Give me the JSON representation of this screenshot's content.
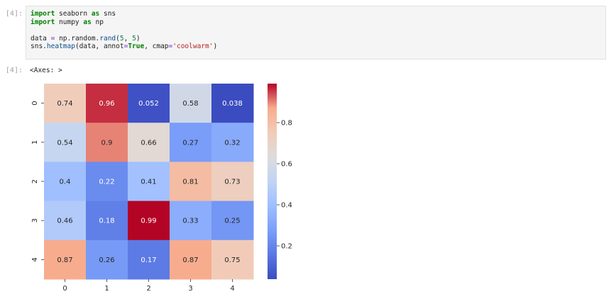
{
  "cell": {
    "in_prompt": "[4]:",
    "out_prompt": "[4]:",
    "output_text": "<Axes: >"
  },
  "code": {
    "line1": {
      "kw1": "import",
      "mod": " seaborn ",
      "kw2": "as",
      "alias": " sns"
    },
    "line2": {
      "kw1": "import",
      "mod": " numpy ",
      "kw2": "as",
      "alias": " np"
    },
    "line4": {
      "pre": "data ",
      "eq": "=",
      "mid": " np.random.",
      "fn": "rand",
      "open": "(",
      "n1": "5",
      "comma": ", ",
      "n2": "5",
      "close": ")"
    },
    "line5": {
      "pre": "sns.",
      "fn": "heatmap",
      "args1": "(data, annot",
      "eq1": "=",
      "kwval": "True",
      "args2": ", cmap",
      "eq2": "=",
      "str": "'coolwarm'",
      "close": ")"
    }
  },
  "chart_data": {
    "type": "heatmap",
    "x_labels": [
      "0",
      "1",
      "2",
      "3",
      "4"
    ],
    "y_labels": [
      "0",
      "1",
      "2",
      "3",
      "4"
    ],
    "values": [
      [
        0.74,
        0.96,
        0.052,
        0.58,
        0.038
      ],
      [
        0.54,
        0.9,
        0.66,
        0.27,
        0.32
      ],
      [
        0.4,
        0.22,
        0.41,
        0.81,
        0.73
      ],
      [
        0.46,
        0.18,
        0.99,
        0.33,
        0.25
      ],
      [
        0.87,
        0.26,
        0.17,
        0.87,
        0.75
      ]
    ],
    "cell_labels": [
      [
        "0.74",
        "0.96",
        "0.052",
        "0.58",
        "0.038"
      ],
      [
        "0.54",
        "0.9",
        "0.66",
        "0.27",
        "0.32"
      ],
      [
        "0.4",
        "0.22",
        "0.41",
        "0.81",
        "0.73"
      ],
      [
        "0.46",
        "0.18",
        "0.99",
        "0.33",
        "0.25"
      ],
      [
        "0.87",
        "0.26",
        "0.17",
        "0.87",
        "0.75"
      ]
    ],
    "colormap": "coolwarm",
    "vmin": 0.038,
    "vmax": 0.99,
    "colorbar_ticks": [
      "0.2",
      "0.4",
      "0.6",
      "0.8"
    ],
    "colorbar_tick_values": [
      0.2,
      0.4,
      0.6,
      0.8
    ]
  }
}
